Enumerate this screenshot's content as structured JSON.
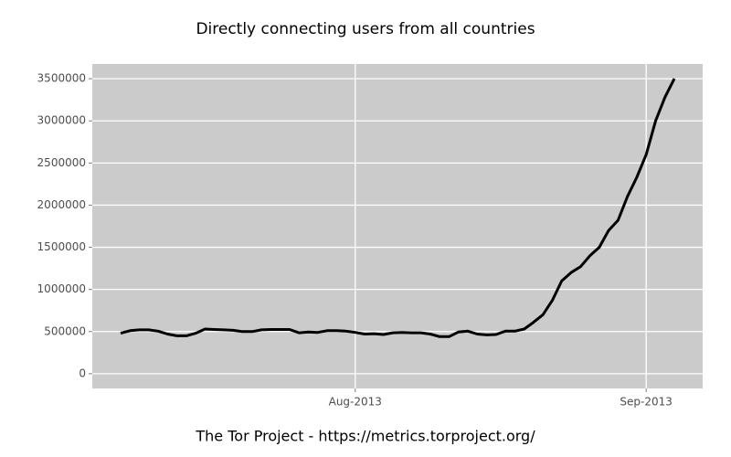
{
  "chart_data": {
    "type": "line",
    "title": "Directly connecting users from all countries",
    "caption": "The Tor Project - https://metrics.torproject.org/",
    "categories": [
      null,
      null,
      null,
      null,
      null,
      null,
      null,
      null,
      null,
      null,
      null,
      null,
      null,
      null,
      null,
      null,
      null,
      null,
      null,
      null,
      null,
      null,
      null,
      null,
      null,
      "Aug-2013",
      null,
      null,
      null,
      null,
      null,
      null,
      null,
      null,
      null,
      null,
      null,
      null,
      null,
      null,
      null,
      null,
      null,
      null,
      null,
      null,
      null,
      null,
      null,
      null,
      null,
      null,
      null,
      null,
      null,
      null,
      "Sep-2013",
      null,
      null,
      null
    ],
    "series": [
      {
        "color": "#000000",
        "values": [
          480000,
          510000,
          520000,
          520000,
          505000,
          470000,
          450000,
          450000,
          480000,
          530000,
          525000,
          520000,
          515000,
          500000,
          500000,
          520000,
          525000,
          525000,
          525000,
          485000,
          495000,
          490000,
          510000,
          510000,
          505000,
          490000,
          470000,
          475000,
          465000,
          485000,
          490000,
          485000,
          485000,
          470000,
          440000,
          440000,
          495000,
          505000,
          470000,
          460000,
          465000,
          505000,
          505000,
          530000,
          610000,
          700000,
          870000,
          1100000,
          1200000,
          1270000,
          1400000,
          1500000,
          1700000,
          1820000,
          2100000,
          2330000,
          2600000,
          3000000,
          3280000,
          3500000
        ]
      }
    ],
    "ylim": [
      -175000,
      3675000
    ],
    "yticks": [
      0,
      500000,
      1000000,
      1500000,
      2000000,
      2500000,
      3000000,
      3500000
    ],
    "grid": true
  }
}
